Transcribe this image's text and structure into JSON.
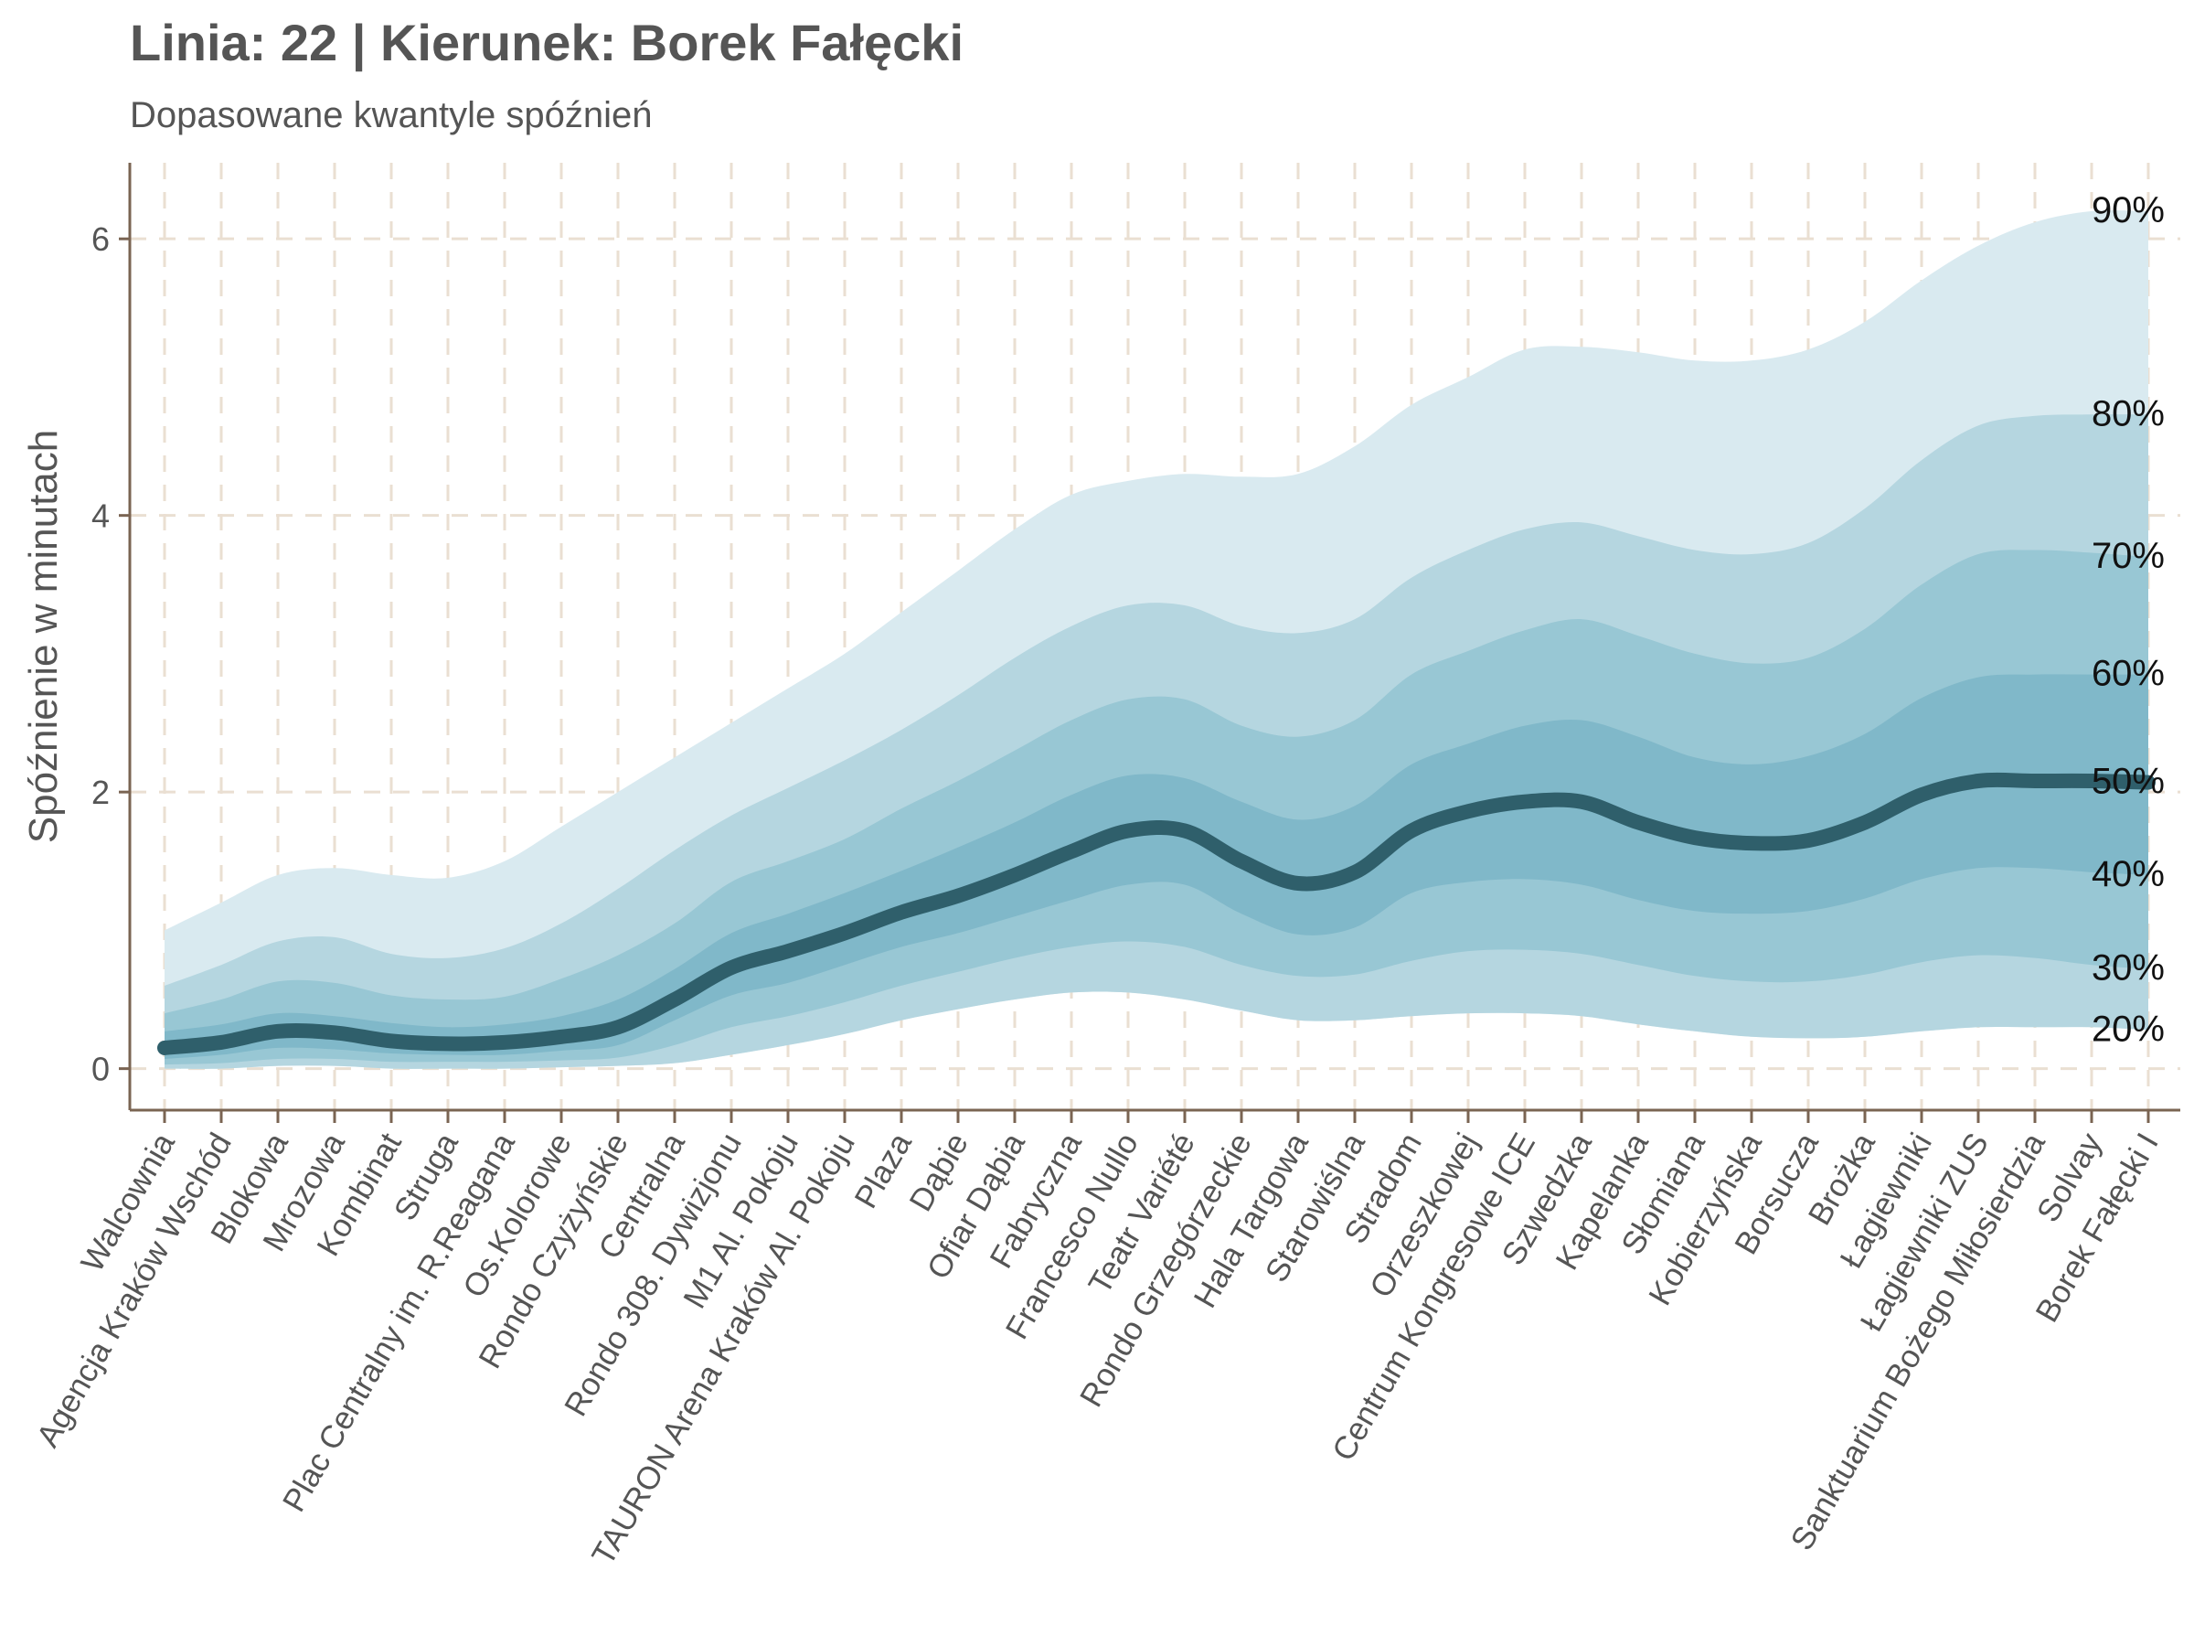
{
  "chart_data": {
    "type": "area",
    "title": "Linia: 22 | Kierunek: Borek Fałęcki",
    "subtitle": "Dopasowane kwantyle spóźnień",
    "xlabel": "",
    "ylabel": "Spóźnienie w minutach",
    "ylim": [
      -0.3,
      6.55
    ],
    "yticks": [
      0,
      2,
      4,
      6
    ],
    "grid": true,
    "categories": [
      "Walcownia",
      "Agencja Kraków Wschód",
      "Blokowa",
      "Mrozowa",
      "Kombinat",
      "Struga",
      "Plac Centralny im. R.Reagana",
      "Os.Kolorowe",
      "Rondo Czyżyńskie",
      "Centralna",
      "Rondo 308. Dywizjonu",
      "M1 Al. Pokoju",
      "TAURON Arena Kraków Al. Pokoju",
      "Plaza",
      "Dąbie",
      "Ofiar Dąbia",
      "Fabryczna",
      "Francesco Nullo",
      "Teatr Variété",
      "Rondo Grzegórzeckie",
      "Hala Targowa",
      "Starowiślna",
      "Stradom",
      "Orzeszkowej",
      "Centrum Kongresowe ICE",
      "Szwedzka",
      "Kapelanka",
      "Słomiana",
      "Kobierzyńska",
      "Borsucza",
      "Brożka",
      "Łagiewniki",
      "Łagiewniki ZUS",
      "Sanktuarium Bożego Miłosierdzia",
      "Solvay",
      "Borek Fałęcki I"
    ],
    "series": [
      {
        "name": "90%",
        "values": [
          1.0,
          1.2,
          1.4,
          1.45,
          1.4,
          1.38,
          1.5,
          1.75,
          2.0,
          2.25,
          2.5,
          2.75,
          3.0,
          3.3,
          3.6,
          3.9,
          4.15,
          4.25,
          4.3,
          4.28,
          4.3,
          4.5,
          4.8,
          5.0,
          5.2,
          5.22,
          5.18,
          5.12,
          5.12,
          5.2,
          5.4,
          5.7,
          5.95,
          6.12,
          6.2,
          6.2
        ]
      },
      {
        "name": "80%",
        "values": [
          0.6,
          0.75,
          0.92,
          0.95,
          0.83,
          0.8,
          0.87,
          1.05,
          1.3,
          1.58,
          1.83,
          2.03,
          2.23,
          2.45,
          2.7,
          2.97,
          3.2,
          3.35,
          3.35,
          3.2,
          3.15,
          3.25,
          3.55,
          3.75,
          3.9,
          3.95,
          3.85,
          3.75,
          3.72,
          3.8,
          4.05,
          4.4,
          4.65,
          4.72,
          4.73,
          4.73
        ]
      },
      {
        "name": "70%",
        "values": [
          0.4,
          0.5,
          0.63,
          0.62,
          0.53,
          0.5,
          0.52,
          0.65,
          0.82,
          1.05,
          1.35,
          1.5,
          1.66,
          1.88,
          2.08,
          2.3,
          2.52,
          2.67,
          2.67,
          2.48,
          2.4,
          2.52,
          2.85,
          3.02,
          3.17,
          3.25,
          3.13,
          3.0,
          2.93,
          2.97,
          3.18,
          3.5,
          3.72,
          3.75,
          3.73,
          3.7
        ]
      },
      {
        "name": "60%",
        "values": [
          0.27,
          0.32,
          0.4,
          0.38,
          0.33,
          0.3,
          0.32,
          0.38,
          0.5,
          0.72,
          0.98,
          1.12,
          1.27,
          1.43,
          1.6,
          1.78,
          1.98,
          2.12,
          2.1,
          1.93,
          1.8,
          1.9,
          2.2,
          2.35,
          2.48,
          2.52,
          2.4,
          2.25,
          2.2,
          2.26,
          2.42,
          2.68,
          2.83,
          2.85,
          2.85,
          2.85
        ]
      },
      {
        "name": "50%",
        "values": [
          0.15,
          0.19,
          0.27,
          0.26,
          0.2,
          0.18,
          0.19,
          0.23,
          0.3,
          0.5,
          0.73,
          0.85,
          0.98,
          1.13,
          1.25,
          1.4,
          1.57,
          1.72,
          1.72,
          1.5,
          1.34,
          1.42,
          1.72,
          1.86,
          1.93,
          1.93,
          1.78,
          1.67,
          1.63,
          1.65,
          1.78,
          1.98,
          2.08,
          2.08,
          2.08,
          2.07
        ]
      },
      {
        "name": "40%",
        "values": [
          0.07,
          0.1,
          0.15,
          0.14,
          0.11,
          0.1,
          0.1,
          0.13,
          0.17,
          0.35,
          0.53,
          0.62,
          0.75,
          0.88,
          0.98,
          1.1,
          1.22,
          1.33,
          1.33,
          1.12,
          0.97,
          1.02,
          1.27,
          1.35,
          1.37,
          1.33,
          1.22,
          1.14,
          1.12,
          1.14,
          1.23,
          1.37,
          1.45,
          1.45,
          1.42,
          1.4
        ]
      },
      {
        "name": "30%",
        "values": [
          0.03,
          0.04,
          0.07,
          0.07,
          0.05,
          0.05,
          0.05,
          0.06,
          0.08,
          0.17,
          0.3,
          0.38,
          0.48,
          0.6,
          0.7,
          0.8,
          0.88,
          0.92,
          0.88,
          0.75,
          0.67,
          0.68,
          0.78,
          0.85,
          0.86,
          0.83,
          0.75,
          0.67,
          0.63,
          0.63,
          0.68,
          0.77,
          0.82,
          0.8,
          0.75,
          0.72
        ]
      },
      {
        "name": "20%",
        "values": [
          0.0,
          0.0,
          0.02,
          0.02,
          0.0,
          0.0,
          0.0,
          0.01,
          0.02,
          0.04,
          0.1,
          0.17,
          0.25,
          0.35,
          0.43,
          0.5,
          0.55,
          0.55,
          0.5,
          0.42,
          0.35,
          0.35,
          0.38,
          0.4,
          0.4,
          0.38,
          0.32,
          0.27,
          0.23,
          0.22,
          0.23,
          0.27,
          0.3,
          0.3,
          0.3,
          0.28
        ]
      }
    ],
    "band_colors": [
      "#d9eaf0",
      "#b5d6e0",
      "#98c7d4",
      "#80b8c9"
    ],
    "median_color": "#2f5f6b",
    "grid_color": "#eadfd2",
    "axis_color": "#7a6452",
    "label_color": "#555555"
  }
}
